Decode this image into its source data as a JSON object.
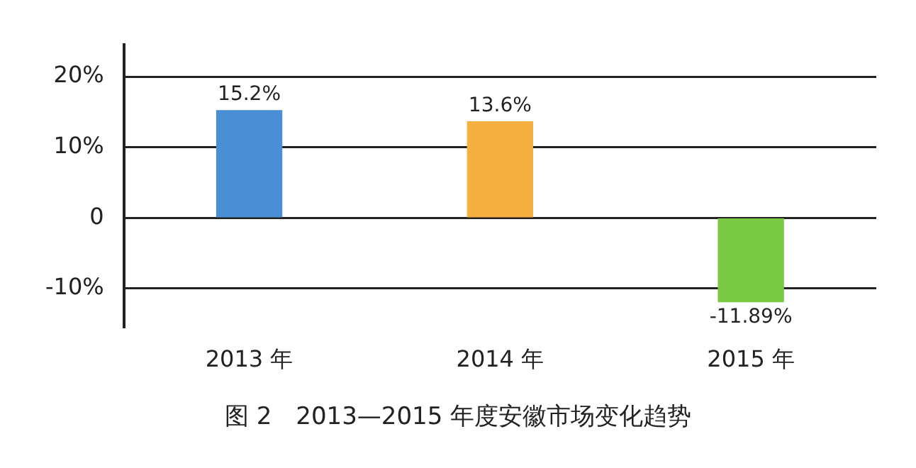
{
  "chart_data": {
    "type": "bar",
    "title": "图 2　2013—2015 年度安徽市场变化趋势",
    "categories": [
      "2013 年",
      "2014 年",
      "2015 年"
    ],
    "values": [
      15.2,
      13.6,
      -11.89
    ],
    "colors": [
      "#4a8fd6",
      "#f5b040",
      "#7ac943"
    ],
    "value_labels": [
      "15.2%",
      "13.6%",
      "-11.89%"
    ],
    "ylim": [
      -15.5,
      24.5
    ],
    "yticks": [
      {
        "value": -10,
        "label": "-10%"
      },
      0,
      {
        "value": 10,
        "label": "10%"
      },
      {
        "value": 20,
        "label": "20%"
      }
    ],
    "grid": "y",
    "legend": false
  }
}
